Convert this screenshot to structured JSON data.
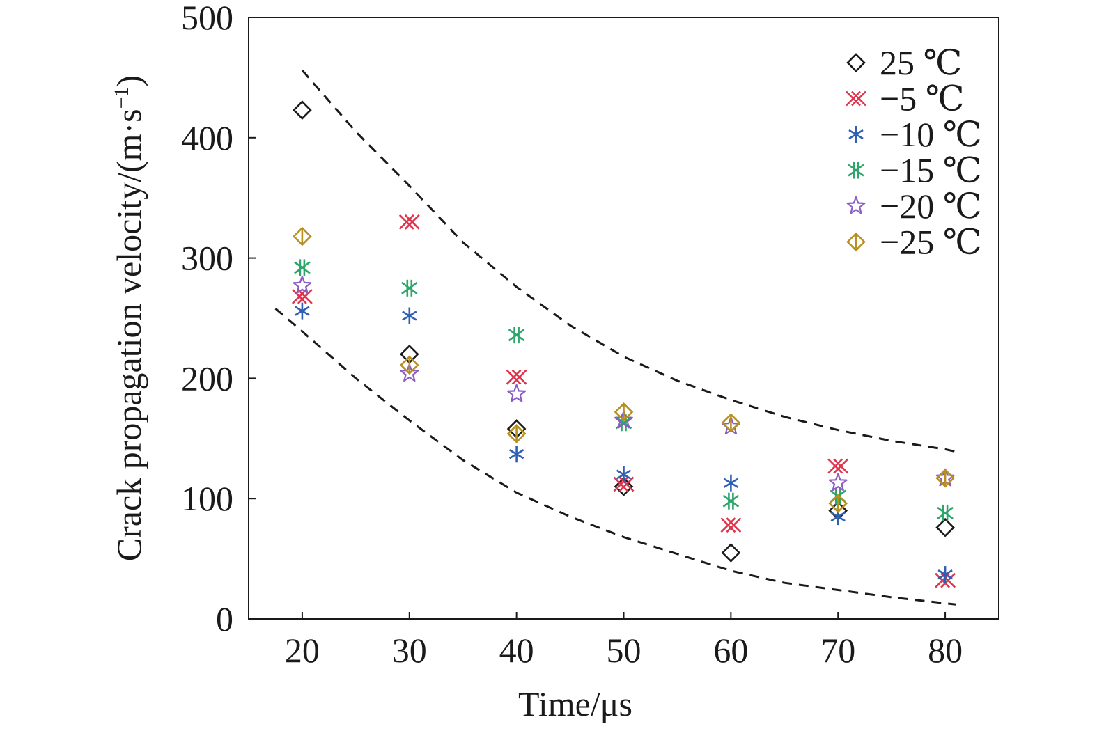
{
  "chart_data": {
    "type": "scatter",
    "xlabel": "Time/μs",
    "ylabel": "Crack propagation velocity/(m·s",
    "ylabel_sup": "−1",
    "ylabel_end": ")",
    "xlim": [
      15,
      85
    ],
    "ylim": [
      0,
      500
    ],
    "x_ticks": [
      "20",
      "30",
      "40",
      "50",
      "60",
      "70",
      "80"
    ],
    "y_ticks": [
      "0",
      "100",
      "200",
      "300",
      "400",
      "500"
    ],
    "x_tick_values": [
      20,
      30,
      40,
      50,
      60,
      70,
      80
    ],
    "y_tick_values": [
      0,
      100,
      200,
      300,
      400,
      500
    ],
    "legend_position": "top-right",
    "grid": false,
    "series": [
      {
        "name": "25 ℃",
        "marker": "diamond",
        "color": "#1a1a1a",
        "x": [
          20,
          30,
          40,
          50,
          60,
          70,
          80
        ],
        "y": [
          423,
          220,
          158,
          110,
          55,
          90,
          76
        ]
      },
      {
        "name": "−5 ℃",
        "marker": "double-x",
        "color": "#e0334c",
        "x": [
          20,
          30,
          40,
          50,
          60,
          70,
          80
        ],
        "y": [
          268,
          330,
          201,
          112,
          78,
          127,
          32
        ]
      },
      {
        "name": "−10 ℃",
        "marker": "asterisk",
        "color": "#2f5fb3",
        "x": [
          20,
          30,
          40,
          50,
          60,
          70,
          80
        ],
        "y": [
          256,
          252,
          137,
          120,
          113,
          85,
          37
        ]
      },
      {
        "name": "−15 ℃",
        "marker": "asterisk-double",
        "color": "#2ea56a",
        "x": [
          20,
          30,
          40,
          50,
          60,
          70,
          80
        ],
        "y": [
          292,
          275,
          236,
          163,
          98,
          102,
          88
        ]
      },
      {
        "name": "−20 ℃",
        "marker": "star",
        "color": "#8a5cc4",
        "x": [
          20,
          30,
          40,
          50,
          60,
          70,
          80
        ],
        "y": [
          277,
          204,
          187,
          165,
          160,
          113,
          117
        ]
      },
      {
        "name": "−25 ℃",
        "marker": "diamond-split",
        "color": "#b8901f",
        "x": [
          20,
          30,
          40,
          50,
          60,
          70,
          80
        ],
        "y": [
          318,
          211,
          154,
          172,
          163,
          96,
          117
        ]
      }
    ],
    "envelopes": [
      {
        "style": "dashed",
        "color": "#1a1a1a",
        "x": [
          20,
          25,
          30,
          35,
          40,
          45,
          50,
          55,
          60,
          65,
          70,
          75,
          80,
          81
        ],
        "y": [
          456,
          405,
          360,
          313,
          276,
          244,
          218,
          198,
          182,
          168,
          157,
          148,
          141,
          139
        ]
      },
      {
        "style": "dashed",
        "color": "#1a1a1a",
        "x": [
          17.5,
          20,
          25,
          30,
          35,
          40,
          45,
          50,
          55,
          60,
          65,
          70,
          75,
          80,
          81
        ],
        "y": [
          258,
          239,
          200,
          165,
          132,
          105,
          85,
          68,
          54,
          40,
          30,
          24,
          18,
          13,
          12
        ]
      }
    ]
  }
}
